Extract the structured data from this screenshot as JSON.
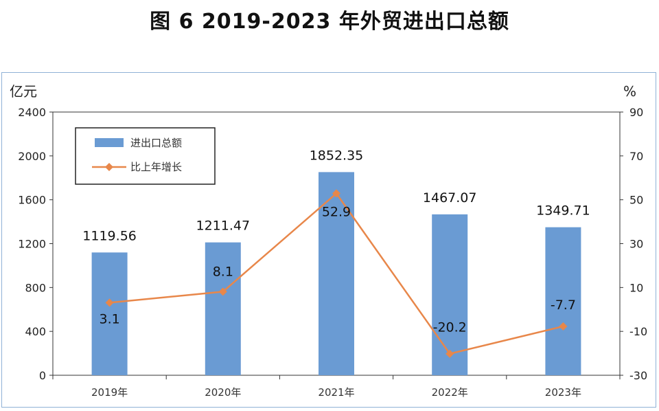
{
  "title": "图 6   2019-2023 年外贸进出口总额",
  "chart_data": {
    "type": "bar",
    "categories": [
      "2019年",
      "2020年",
      "2021年",
      "2022年",
      "2023年"
    ],
    "series": [
      {
        "name": "进出口总额",
        "type": "bar",
        "axis": "left",
        "values": [
          1119.56,
          1211.47,
          1852.35,
          1467.07,
          1349.71
        ],
        "labels": [
          "1119.56",
          "1211.47",
          "1852.35",
          "1467.07",
          "1349.71"
        ],
        "color": "#6a9bd3"
      },
      {
        "name": "比上年增长",
        "type": "line",
        "axis": "right",
        "values": [
          3.1,
          8.1,
          52.9,
          -20.2,
          -7.7
        ],
        "labels": [
          "3.1",
          "8.1",
          "52.9",
          "-20.2",
          "-7.7"
        ],
        "color": "#e8874a"
      }
    ],
    "ylabel_left": "亿元",
    "ylabel_right": "%",
    "ylim_left": [
      0,
      2400
    ],
    "ylim_right": [
      -30,
      90
    ],
    "yticks_left": [
      "0",
      "400",
      "800",
      "1200",
      "1600",
      "2000",
      "2400"
    ],
    "yticks_right": [
      "-30",
      "-10",
      "10",
      "30",
      "50",
      "70",
      "90"
    ],
    "legend_position": "top-left",
    "grid": false
  }
}
